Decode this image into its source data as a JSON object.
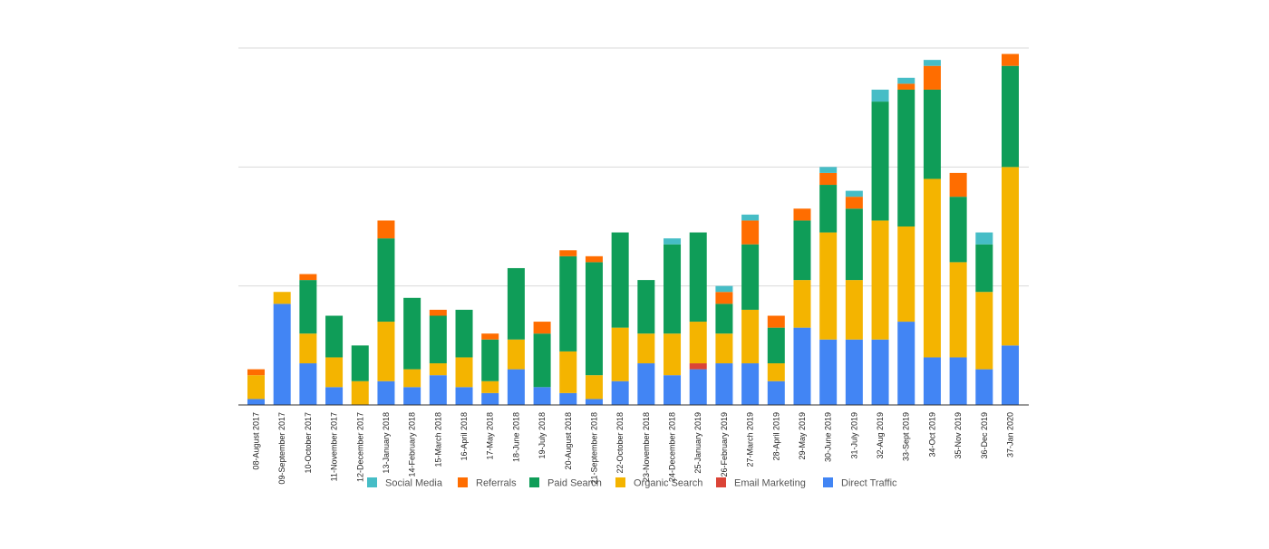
{
  "chart_data": {
    "type": "bar",
    "stacked": true,
    "title": "",
    "xlabel": "",
    "ylabel": "",
    "ylim": [
      0,
      30
    ],
    "grid": true,
    "y_tick_labels_visible": false,
    "legend_position": "bottom",
    "categories": [
      "08-August 2017",
      "09-September 2017",
      "10-October 2017",
      "11-November 2017",
      "12-December 2017",
      "13-January 2018",
      "14-February 2018",
      "15-March 2018",
      "16-April 2018",
      "17-May 2018",
      "18-June 2018",
      "19-July 2018",
      "20-August 2018",
      "21-September 2018",
      "22-October 2018",
      "23-November 2018",
      "24-December 2018",
      "25-January 2019",
      "26-February 2019",
      "27-March 2019",
      "28-April 2019",
      "29-May 2019",
      "30-June 2019",
      "31-July 2019",
      "32-Aug 2019",
      "33-Sept 2019",
      "34-Oct 2019",
      "35-Nov 2019",
      "36-Dec 2019",
      "37-Jan 2020"
    ],
    "series": [
      {
        "name": "Direct Traffic",
        "color": "#4285F4",
        "values": [
          0.5,
          8.5,
          3.5,
          1.5,
          0,
          2,
          1.5,
          2.5,
          1.5,
          1,
          3,
          1.5,
          1,
          0.5,
          2,
          3.5,
          2.5,
          3,
          3.5,
          3.5,
          2,
          6.5,
          5.5,
          5.5,
          5.5,
          7,
          4,
          4,
          3,
          5
        ]
      },
      {
        "name": "Email Marketing",
        "color": "#DB4437",
        "values": [
          0,
          0,
          0,
          0,
          0,
          0,
          0,
          0,
          0,
          0,
          0,
          0,
          0,
          0,
          0,
          0,
          0,
          0.5,
          0,
          0,
          0,
          0,
          0,
          0,
          0,
          0,
          0,
          0,
          0,
          0
        ]
      },
      {
        "name": "Organic Search",
        "color": "#F4B400",
        "values": [
          2,
          1,
          2.5,
          2.5,
          2,
          5,
          1.5,
          1,
          2.5,
          1,
          2.5,
          0,
          3.5,
          2,
          4.5,
          2.5,
          3.5,
          3.5,
          2.5,
          4.5,
          1.5,
          4,
          9,
          5,
          10,
          8,
          15,
          8,
          6.5,
          15
        ]
      },
      {
        "name": "Paid Search",
        "color": "#0F9D58",
        "values": [
          0,
          0,
          4.5,
          3.5,
          3,
          7,
          6,
          4,
          4,
          3.5,
          6,
          4.5,
          8,
          9.5,
          8,
          4.5,
          7.5,
          7.5,
          2.5,
          5.5,
          3,
          5,
          4,
          6,
          10,
          11.5,
          7.5,
          5.5,
          4,
          8.5
        ]
      },
      {
        "name": "Referrals",
        "color": "#FF6D00",
        "values": [
          0.5,
          0,
          0.5,
          0,
          0,
          1.5,
          0,
          0.5,
          0,
          0.5,
          0,
          1,
          0.5,
          0.5,
          0,
          0,
          0,
          0,
          1,
          2,
          1,
          1,
          1,
          1,
          0,
          0.5,
          2,
          2,
          0,
          1
        ]
      },
      {
        "name": "Social Media",
        "color": "#46BDC6",
        "values": [
          0,
          0,
          0,
          0,
          0,
          0,
          0,
          0,
          0,
          0,
          0,
          0,
          0,
          0,
          0,
          0,
          0.5,
          0,
          0.5,
          0.5,
          0,
          0,
          0.5,
          0.5,
          1,
          0.5,
          0.5,
          0,
          1,
          0
        ]
      }
    ],
    "legend_order": [
      "Social Media",
      "Referrals",
      "Paid Search",
      "Organic Search",
      "Email Marketing",
      "Direct Traffic"
    ]
  }
}
